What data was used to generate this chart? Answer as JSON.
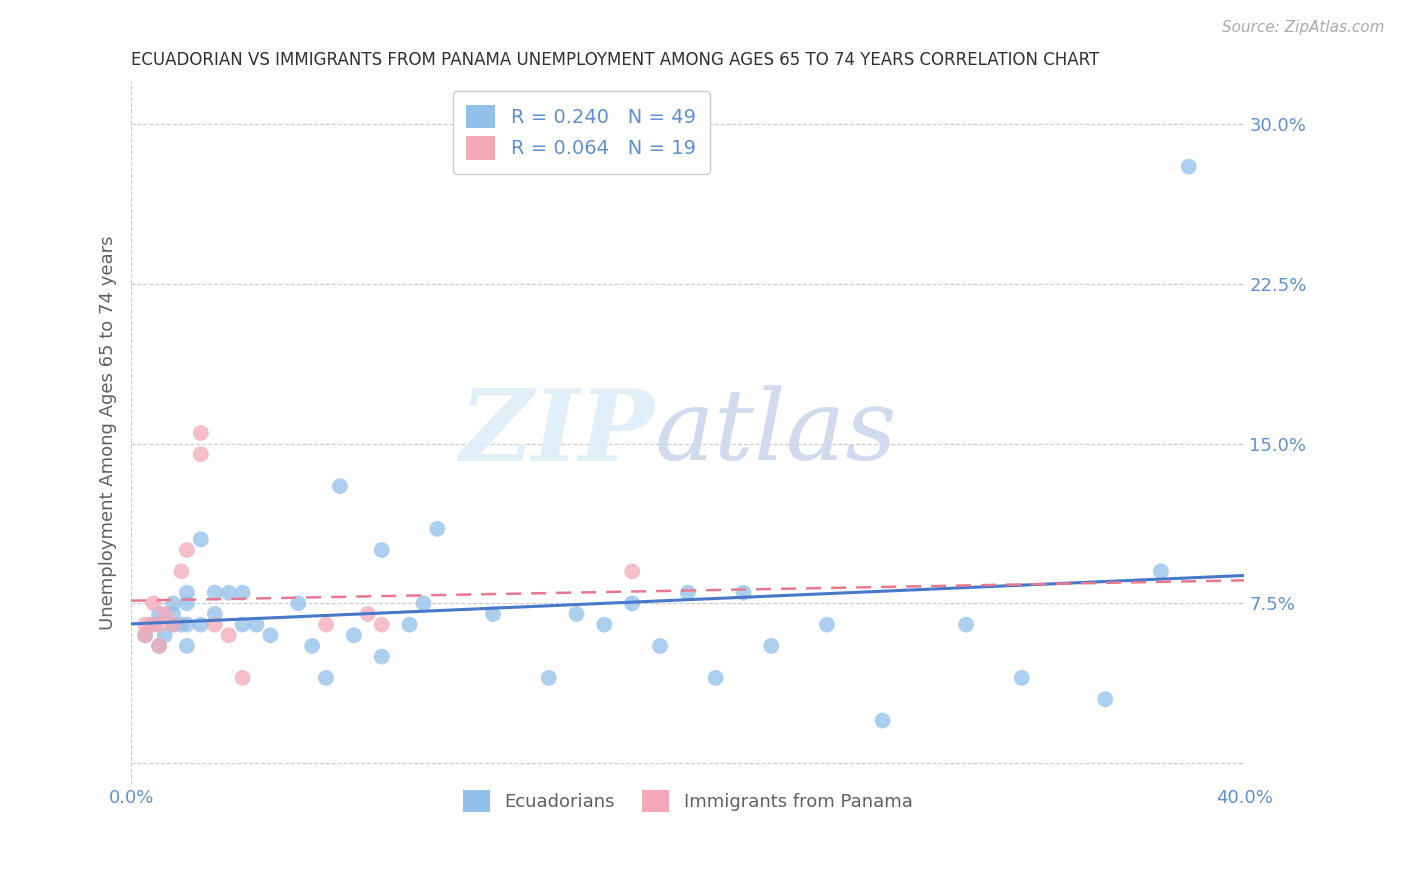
{
  "title": "ECUADORIAN VS IMMIGRANTS FROM PANAMA UNEMPLOYMENT AMONG AGES 65 TO 74 YEARS CORRELATION CHART",
  "source": "Source: ZipAtlas.com",
  "ylabel": "Unemployment Among Ages 65 to 74 years",
  "xlim": [
    0.0,
    0.4
  ],
  "ylim": [
    -0.01,
    0.32
  ],
  "yticks": [
    0.0,
    0.075,
    0.15,
    0.225,
    0.3
  ],
  "ytick_labels": [
    "",
    "7.5%",
    "15.0%",
    "22.5%",
    "30.0%"
  ],
  "xticks": [
    0.0,
    0.1,
    0.2,
    0.3,
    0.4
  ],
  "xtick_labels": [
    "0.0%",
    "",
    "",
    "",
    "40.0%"
  ],
  "ecu_color": "#92c0ea",
  "pan_color": "#f4a8b8",
  "ecu_line_color": "#4878c8",
  "pan_line_color": "#e87890",
  "background_color": "#ffffff",
  "grid_color": "#c8c8d8",
  "title_color": "#303030",
  "axis_label_color": "#606060",
  "tick_label_color": "#6090d0",
  "legend_entries": [
    {
      "label": "R = 0.240   N = 49",
      "color": "#92c0ea"
    },
    {
      "label": "R = 0.064   N = 19",
      "color": "#f4a8b8"
    }
  ],
  "ecu_x": [
    0.005,
    0.008,
    0.01,
    0.01,
    0.012,
    0.015,
    0.015,
    0.015,
    0.018,
    0.02,
    0.02,
    0.02,
    0.02,
    0.025,
    0.025,
    0.03,
    0.03,
    0.035,
    0.04,
    0.04,
    0.045,
    0.05,
    0.06,
    0.065,
    0.07,
    0.075,
    0.08,
    0.09,
    0.09,
    0.1,
    0.105,
    0.11,
    0.13,
    0.15,
    0.16,
    0.17,
    0.18,
    0.19,
    0.2,
    0.21,
    0.22,
    0.23,
    0.25,
    0.27,
    0.3,
    0.32,
    0.35,
    0.37,
    0.38
  ],
  "ecu_y": [
    0.06,
    0.065,
    0.055,
    0.07,
    0.06,
    0.065,
    0.07,
    0.075,
    0.065,
    0.055,
    0.065,
    0.075,
    0.08,
    0.065,
    0.105,
    0.07,
    0.08,
    0.08,
    0.065,
    0.08,
    0.065,
    0.06,
    0.075,
    0.055,
    0.04,
    0.13,
    0.06,
    0.05,
    0.1,
    0.065,
    0.075,
    0.11,
    0.07,
    0.04,
    0.07,
    0.065,
    0.075,
    0.055,
    0.08,
    0.04,
    0.08,
    0.055,
    0.065,
    0.02,
    0.065,
    0.04,
    0.03,
    0.09,
    0.28
  ],
  "pan_x": [
    0.005,
    0.005,
    0.007,
    0.008,
    0.01,
    0.01,
    0.012,
    0.015,
    0.018,
    0.02,
    0.025,
    0.025,
    0.03,
    0.035,
    0.04,
    0.07,
    0.085,
    0.09,
    0.18
  ],
  "pan_y": [
    0.06,
    0.065,
    0.065,
    0.075,
    0.055,
    0.065,
    0.07,
    0.065,
    0.09,
    0.1,
    0.145,
    0.155,
    0.065,
    0.06,
    0.04,
    0.065,
    0.07,
    0.065,
    0.09
  ]
}
